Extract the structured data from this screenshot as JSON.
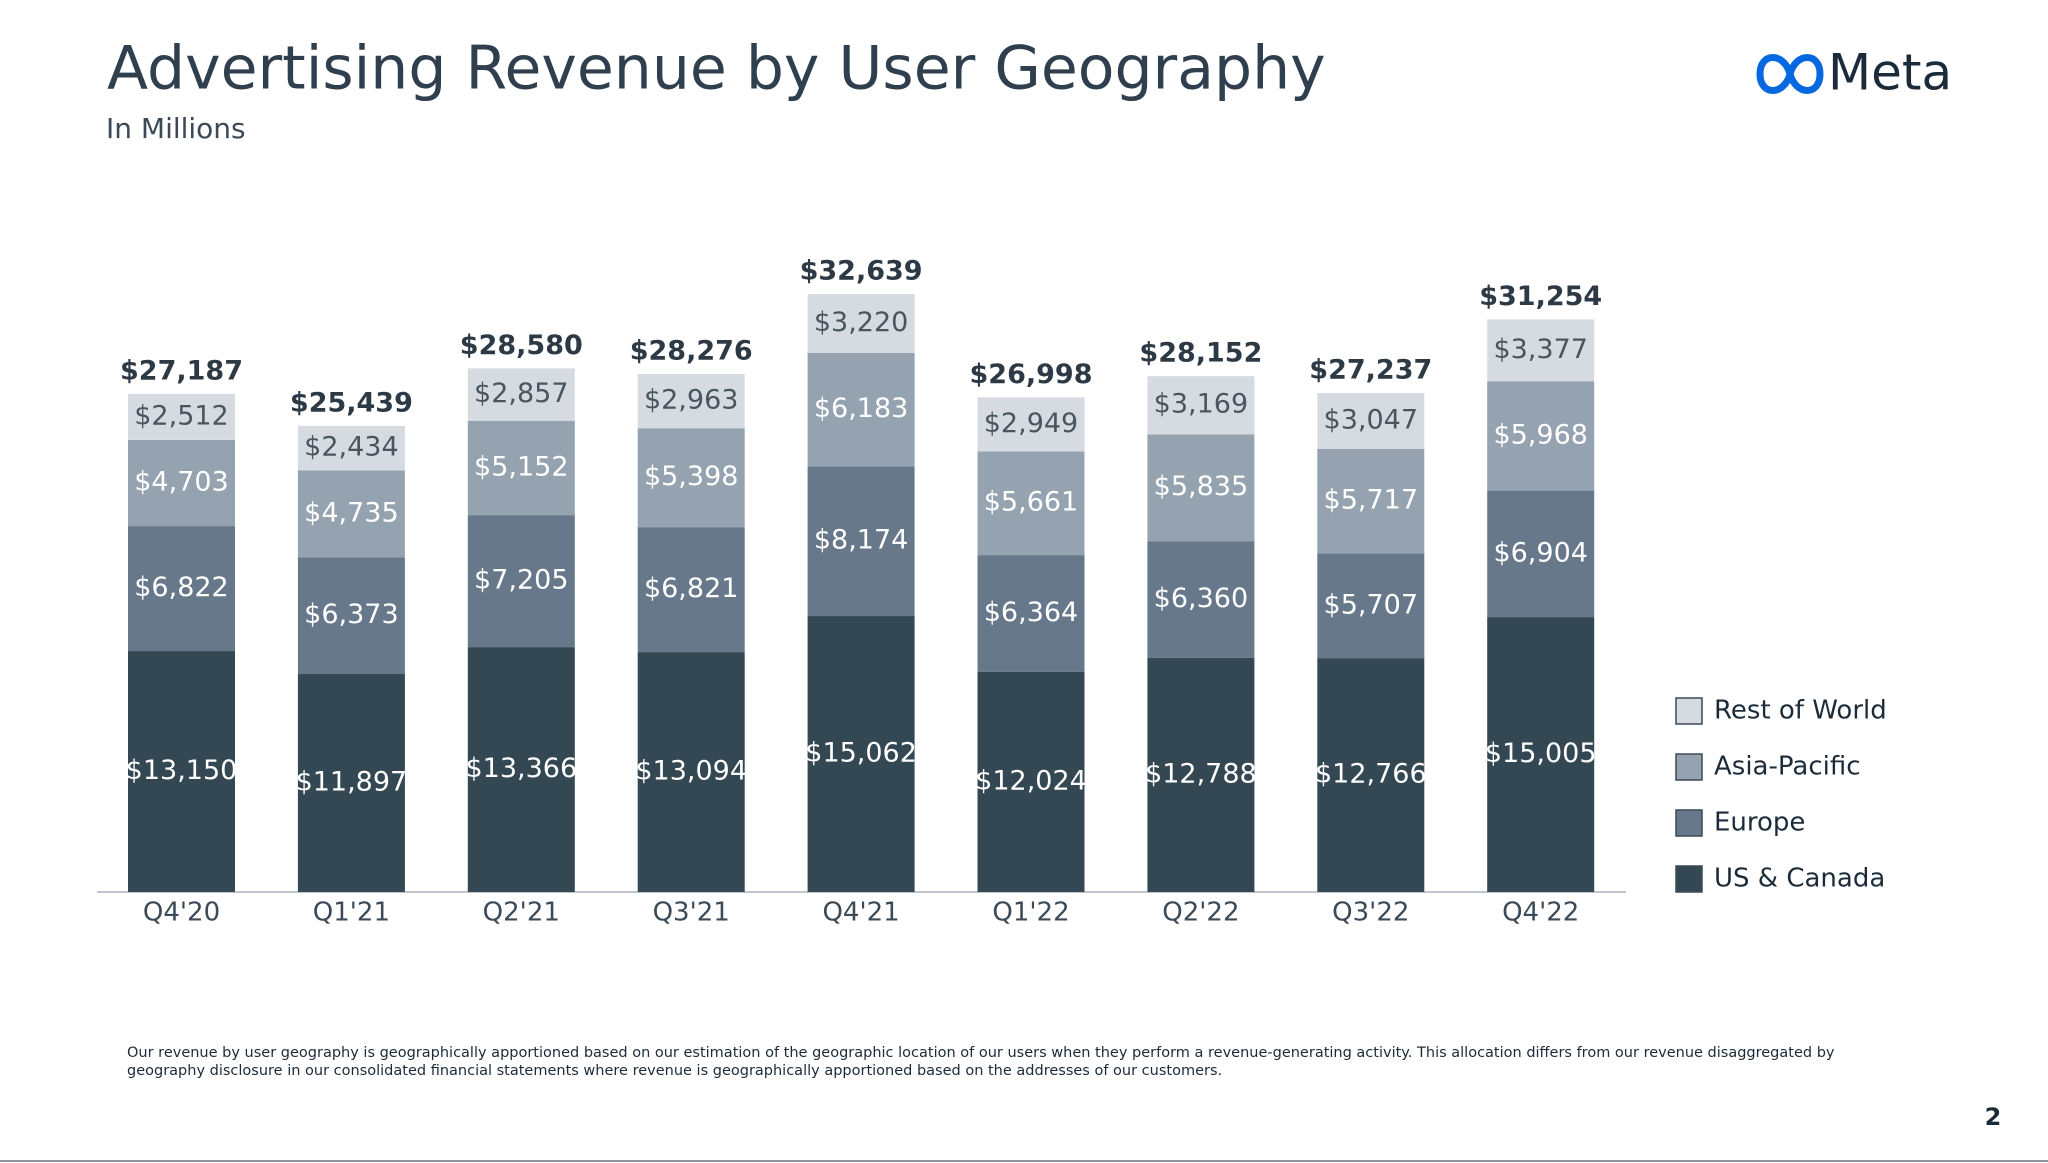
{
  "header": {
    "title": "Advertising Revenue by User Geography",
    "subtitle": "In Millions",
    "logo": "Meta"
  },
  "chart_data": {
    "type": "stacked_bar",
    "categories": [
      "Q4'20",
      "Q1'21",
      "Q2'21",
      "Q3'21",
      "Q4'21",
      "Q1'22",
      "Q2'22",
      "Q3'22",
      "Q4'22"
    ],
    "series": [
      {
        "name": "US & Canada",
        "color": "#344854",
        "label_color": "#ffffff",
        "values": [
          13150,
          11897,
          13366,
          13094,
          15062,
          12024,
          12788,
          12766,
          15005
        ],
        "value_labels": [
          "$13,150",
          "$11,897",
          "$13,366",
          "$13,094",
          "$15,062",
          "$12,024",
          "$12,788",
          "$12,766",
          "$15,005"
        ]
      },
      {
        "name": "Europe",
        "color": "#66788a",
        "label_color": "#ffffff",
        "values": [
          6822,
          6373,
          7205,
          6821,
          8174,
          6364,
          6360,
          5707,
          6904
        ],
        "value_labels": [
          "$6,822",
          "$6,373",
          "$7,205",
          "$6,821",
          "$8,174",
          "$6,364",
          "$6,360",
          "$5,707",
          "$6,904"
        ]
      },
      {
        "name": "Asia-Pacific",
        "color": "#95a3b0",
        "label_color": "#ffffff",
        "values": [
          4703,
          4735,
          5152,
          5398,
          6183,
          5661,
          5835,
          5717,
          5968
        ],
        "value_labels": [
          "$4,703",
          "$4,735",
          "$5,152",
          "$5,398",
          "$6,183",
          "$5,661",
          "$5,835",
          "$5,717",
          "$5,968"
        ]
      },
      {
        "name": "Rest of World",
        "color": "#d5dbe0",
        "label_color": "#4a5560",
        "values": [
          2512,
          2434,
          2857,
          2963,
          3220,
          2949,
          3169,
          3047,
          3377
        ],
        "value_labels": [
          "$2,512",
          "$2,434",
          "$2,857",
          "$2,963",
          "$3,220",
          "$2,949",
          "$3,169",
          "$3,047",
          "$3,377"
        ]
      }
    ],
    "totals": [
      27187,
      25439,
      28580,
      28276,
      32639,
      26998,
      28152,
      27237,
      31254
    ],
    "total_labels": [
      "$27,187",
      "$25,439",
      "$28,580",
      "$28,276",
      "$32,639",
      "$26,998",
      "$28,152",
      "$27,237",
      "$31,254"
    ],
    "legend": "right"
  },
  "footnote": "Our revenue by user geography is geographically apportioned based on our estimation of the geographic location of our users when they perform a revenue-generating activity. This allocation differs from our revenue disaggregated by geography disclosure in our consolidated financial statements where revenue is geographically apportioned based on the addresses of our customers.",
  "page_number": "2"
}
